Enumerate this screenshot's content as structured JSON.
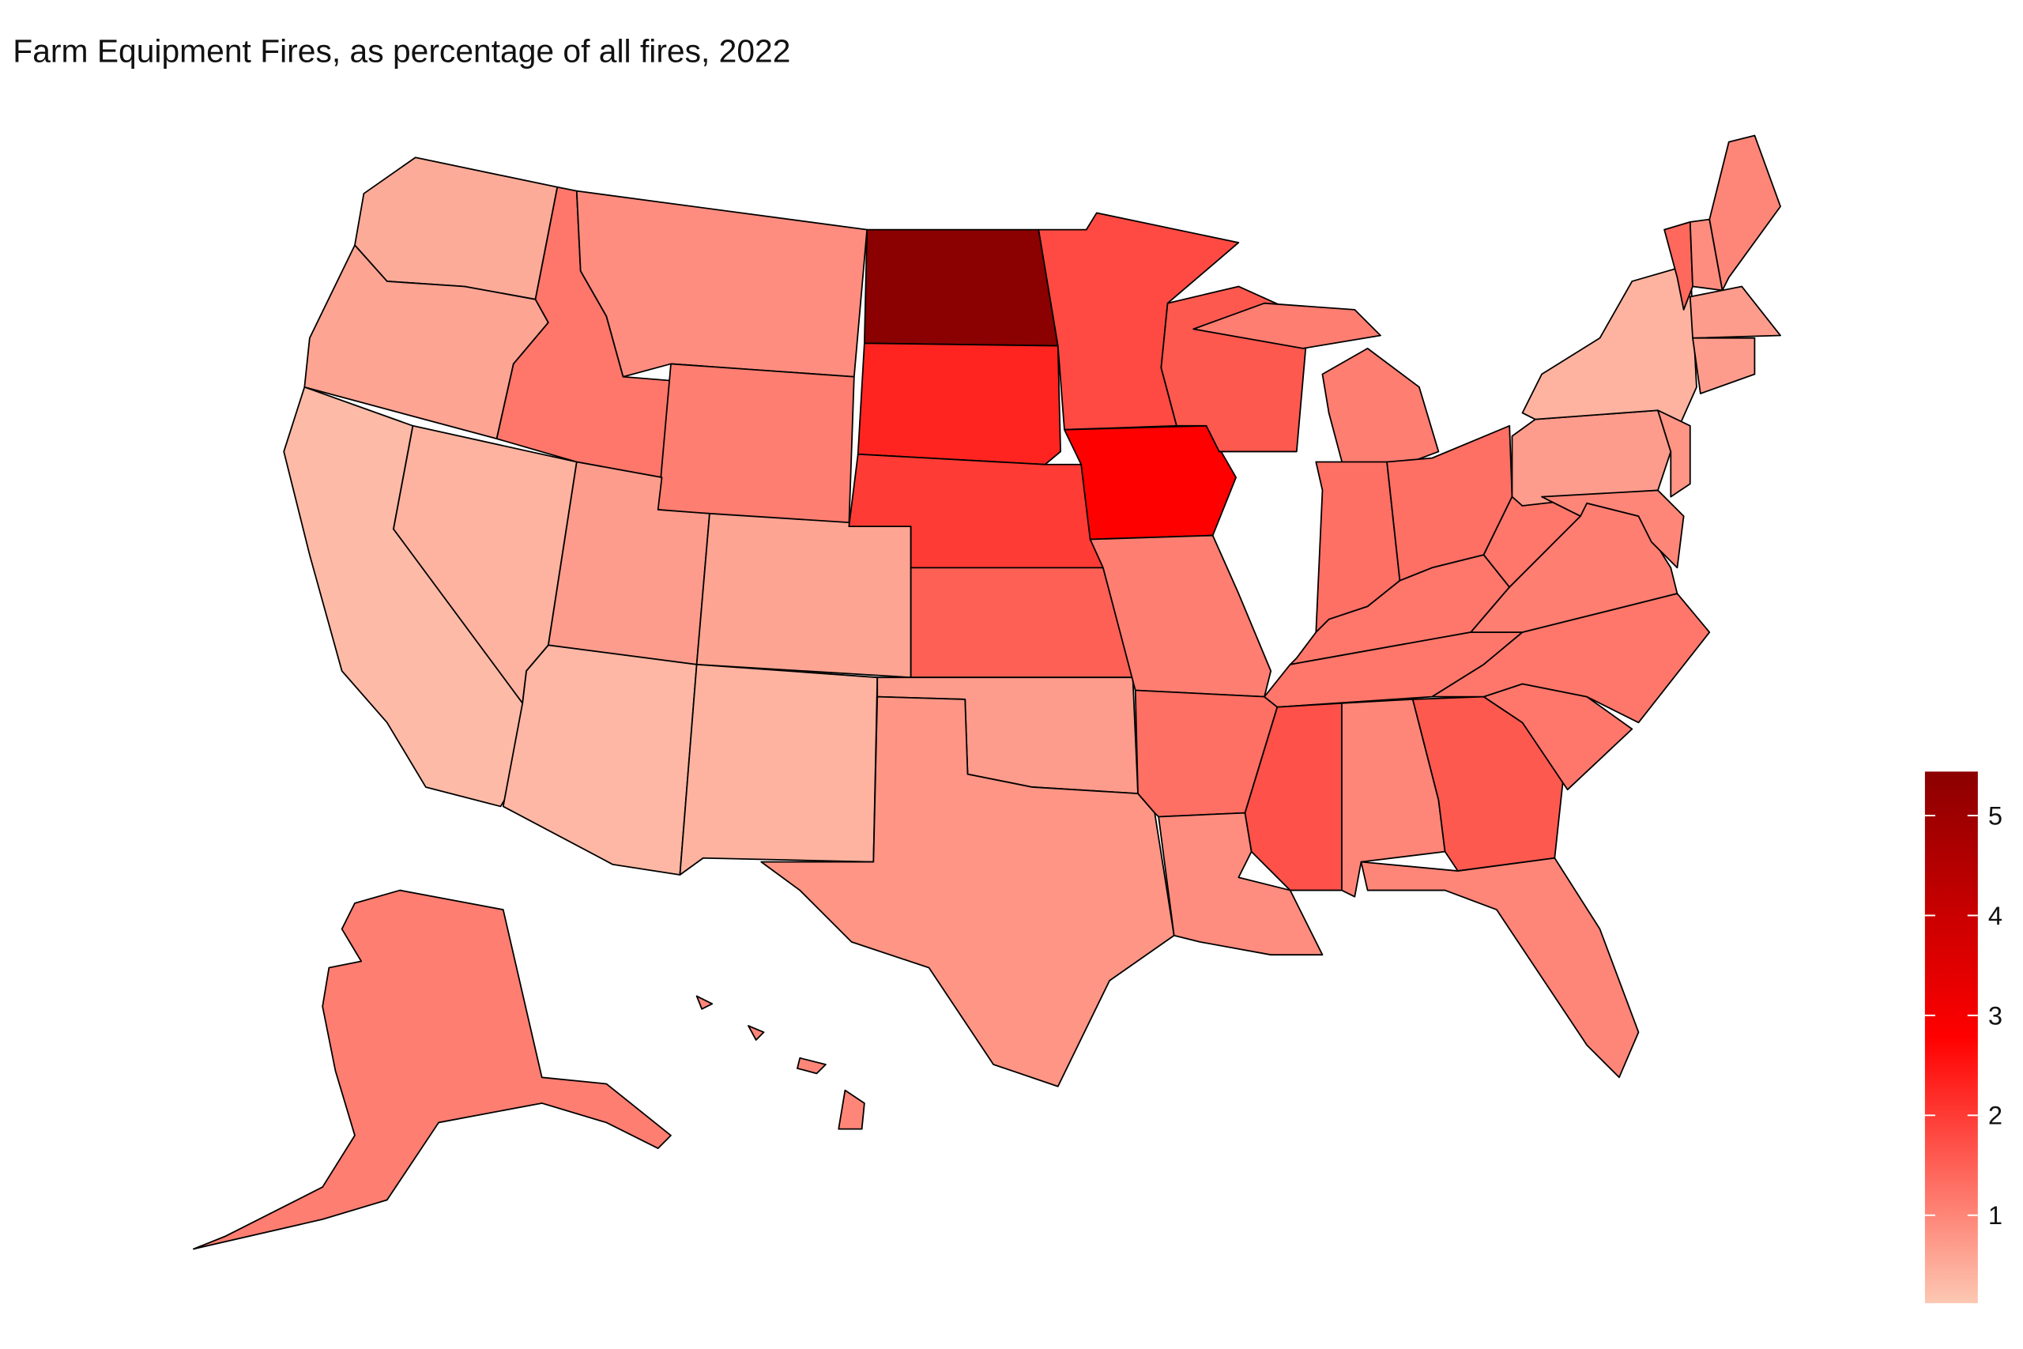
{
  "chart_data": {
    "type": "choropleth",
    "title": "Farm Equipment Fires, as percentage of all fires, 2022",
    "values": [
      0.5,
      0.6,
      0.3,
      0.4,
      1.2,
      0.9,
      1.1,
      0.7,
      0.6,
      0.35,
      0.4,
      5.44,
      2.3,
      2.0,
      1.5,
      0.7,
      0.8,
      1.8,
      2.8,
      1.1,
      1.3,
      0.9,
      1.6,
      1.1,
      1.3,
      1.3,
      1.2,
      1.2,
      1.7,
      1.0,
      1.6,
      1.0,
      1.2,
      1.2,
      1.1,
      1.2,
      0.7,
      0.4,
      0.8,
      1.0,
      1.4,
      0.9,
      1.0,
      0.7,
      0.7,
      1.1,
      1.0
    ],
    "colors": [
      "#fdc8b3",
      "#ff0000",
      "#8b0000"
    ],
    "clim": [
      0.12,
      5.44
    ],
    "ticks": [
      1,
      2,
      3,
      4,
      5
    ]
  }
}
